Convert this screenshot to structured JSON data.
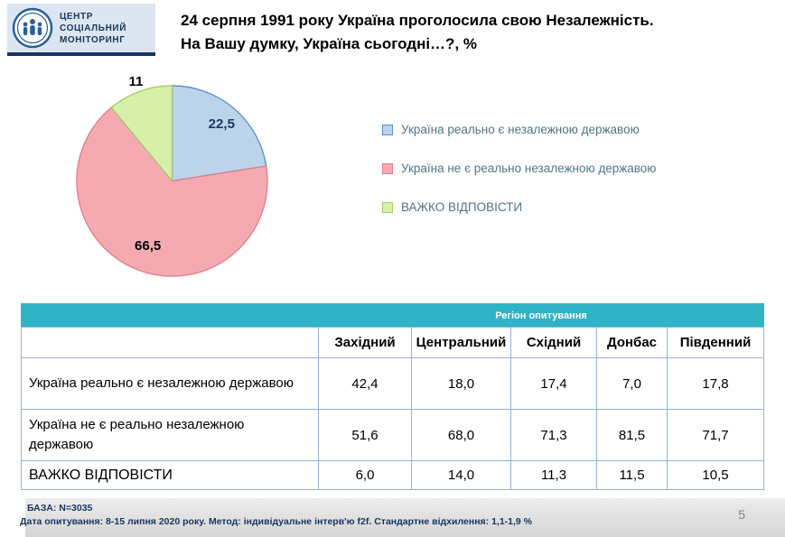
{
  "logo": {
    "line1": "ЦЕНТР",
    "line2": "СОЦІАЛЬНИЙ",
    "line3": "МОНІТОРИНГ"
  },
  "title": {
    "line1": "24 серпня 1991 року Україна проголосила свою Незалежність.",
    "line2": "На Вашу думку, Україна сьогодні…?, %"
  },
  "chart_data": {
    "type": "pie",
    "title": "24 серпня 1991 року Україна проголосила свою Незалежність. На Вашу думку, Україна сьогодні…?, %",
    "labels": [
      "Україна реально є незалежною державою",
      "Україна не є реально незалежною державою",
      "ВАЖКО ВІДПОВІСТИ"
    ],
    "values": [
      22.5,
      66.5,
      11
    ],
    "value_labels": [
      "22,5",
      "66,5",
      "11"
    ],
    "colors": [
      "#bdd3ea",
      "#f5aab2",
      "#d8efaa"
    ],
    "border_colors": [
      "#5b8ec4",
      "#dd7f8b",
      "#a4cc64"
    ],
    "label_colors": [
      "#1f3864",
      "#000000",
      "#000000"
    ],
    "legend_position": "right",
    "start_angle_deg": 0,
    "direction": "clockwise"
  },
  "table": {
    "group_header": "Регіон опитування",
    "columns": [
      "Західний",
      "Центральний",
      "Східний",
      "Донбас",
      "Південний"
    ],
    "rows": [
      {
        "label": "Україна реально є незалежною державою",
        "values": [
          "42,4",
          "18,0",
          "17,4",
          "7,0",
          "17,8"
        ]
      },
      {
        "label": "Україна не є реально незалежною державою",
        "values": [
          "51,6",
          "68,0",
          "71,3",
          "81,5",
          "71,7"
        ]
      },
      {
        "label": "ВАЖКО ВІДПОВІСТИ",
        "values": [
          "6,0",
          "14,0",
          "11,3",
          "11,5",
          "10,5"
        ]
      }
    ]
  },
  "footer": {
    "base": "БАЗА: N=3035",
    "details": "Дата опитування: 8-15 липня 2020 року. Метод: індивідуальне інтерв'ю f2f. Стандартне відхилення: 1,1-1,9 %",
    "page_number": "5"
  }
}
